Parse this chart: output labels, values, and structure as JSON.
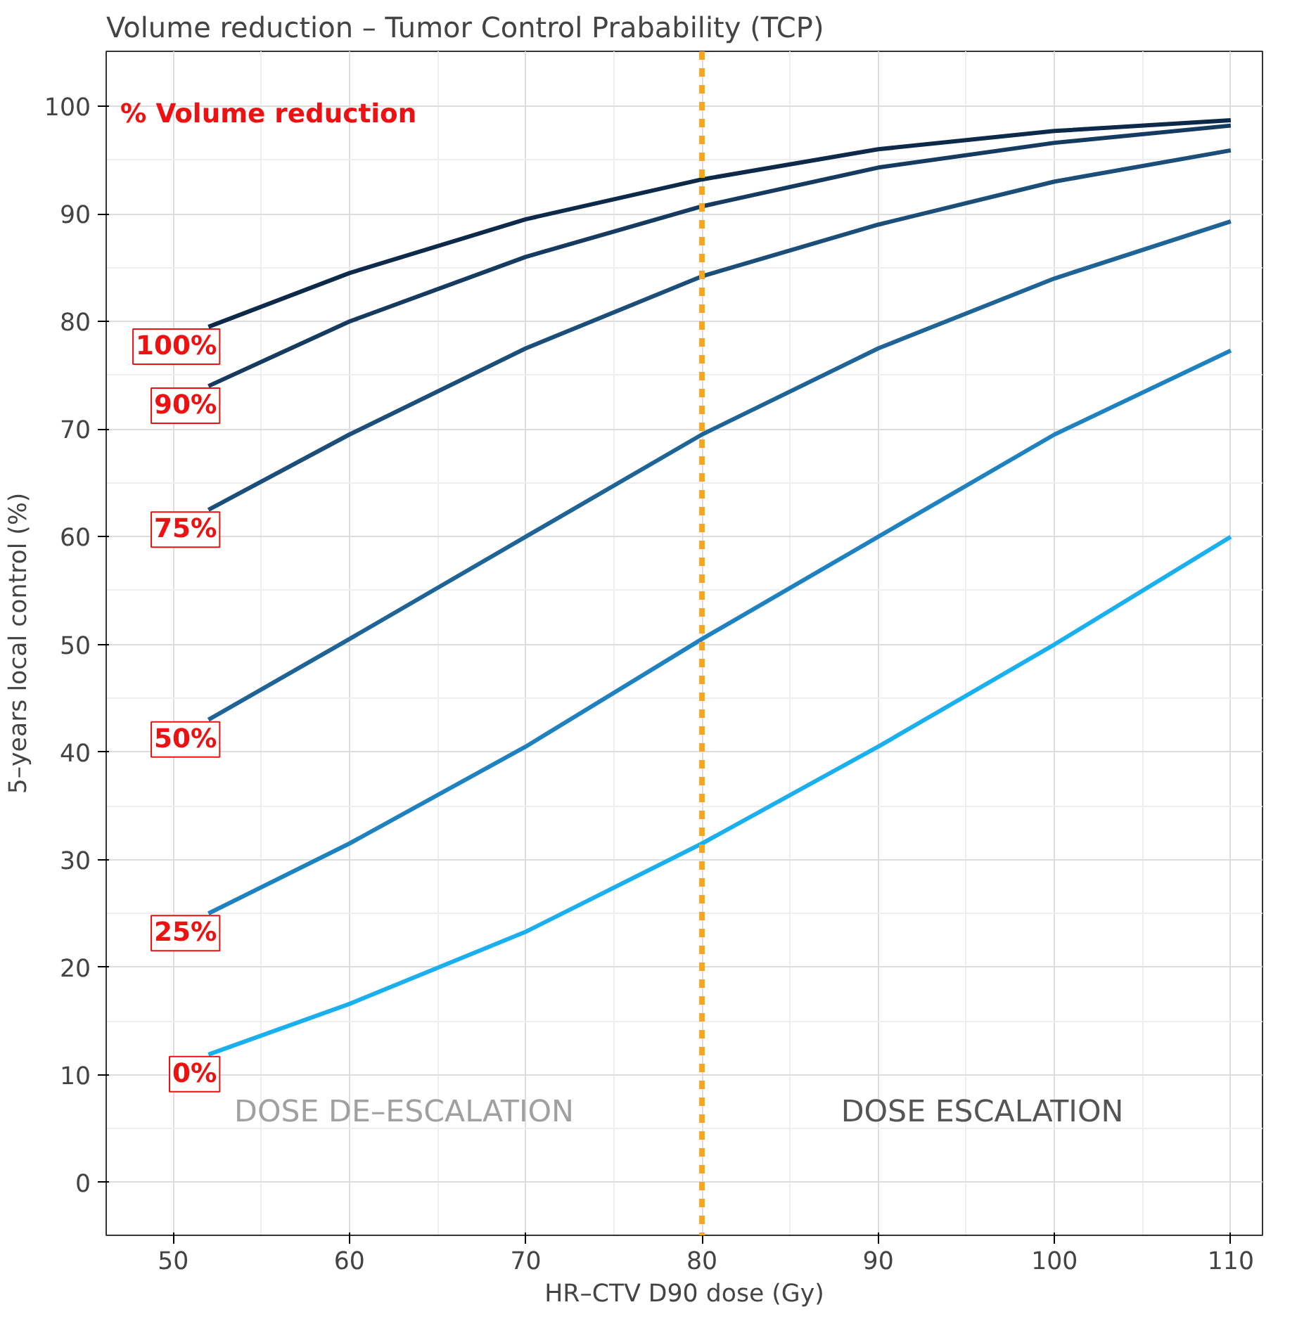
{
  "chart_data": {
    "type": "line",
    "title": "Volume reduction – Tumor Control Prabability (TCP)",
    "xlabel": "HR–CTV D90 dose (Gy)",
    "ylabel": "5–years local control (%)",
    "legend_title": "% Volume reduction",
    "x": [
      52,
      60,
      70,
      80,
      90,
      100,
      110
    ],
    "series": [
      {
        "name": "100%",
        "color": "#0d2a4a",
        "values": [
          79.5,
          84.5,
          89.5,
          93.2,
          96,
          97.7,
          98.7
        ]
      },
      {
        "name": "90%",
        "color": "#153b60",
        "values": [
          74,
          80,
          86,
          90.7,
          94.3,
          96.6,
          98.2
        ]
      },
      {
        "name": "75%",
        "color": "#1b4f7a",
        "values": [
          62.5,
          69.5,
          77.5,
          84.2,
          89,
          93,
          95.9
        ]
      },
      {
        "name": "50%",
        "color": "#1f6496",
        "values": [
          43,
          50.5,
          60,
          69.5,
          77.5,
          84,
          89.3
        ]
      },
      {
        "name": "25%",
        "color": "#1e82c0",
        "values": [
          25,
          31.5,
          40.5,
          50.5,
          60,
          69.5,
          77.3
        ]
      },
      {
        "name": "0%",
        "color": "#1ab0f0",
        "values": [
          11.9,
          16.6,
          23.3,
          31.5,
          40.5,
          50,
          60
        ]
      }
    ],
    "ref_lines": [
      {
        "axis": "x",
        "value": 80,
        "color": "#f5a623",
        "line_style": "dashed"
      }
    ],
    "annotations": [
      "DOSE DE–ESCALATION",
      "DOSE ESCALATION"
    ],
    "xlim": [
      46.2,
      111.8
    ],
    "ylim": [
      -4.9,
      105.1
    ],
    "xticks": [
      50,
      60,
      70,
      80,
      90,
      100,
      110
    ],
    "yticks": [
      0,
      10,
      20,
      30,
      40,
      50,
      60,
      70,
      80,
      90,
      100
    ],
    "grid": true,
    "legend": "left",
    "marker": "none",
    "line_style": "solid"
  }
}
